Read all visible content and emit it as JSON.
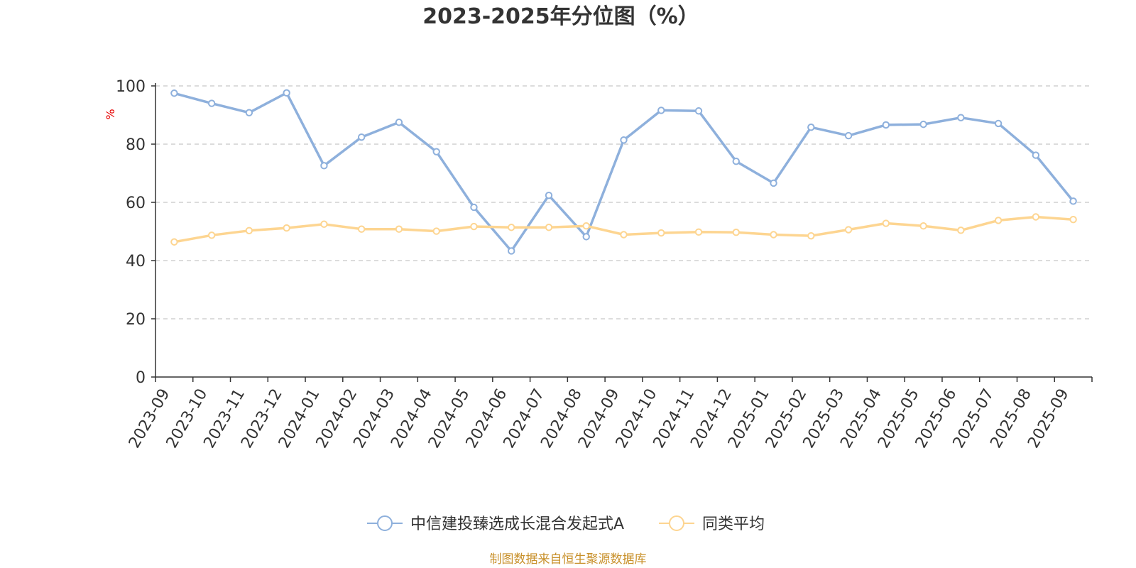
{
  "chart_data": {
    "type": "line",
    "title": "2023-2025年分位图（%）",
    "ylabel": "%",
    "xlabel": "",
    "ylim": [
      0,
      100
    ],
    "yticks": [
      0,
      20,
      40,
      60,
      80,
      100
    ],
    "grid": "horizontal dashed",
    "legend_position": "bottom",
    "categories": [
      "2023-09",
      "2023-10",
      "2023-11",
      "2023-12",
      "2024-01",
      "2024-02",
      "2024-03",
      "2024-04",
      "2024-05",
      "2024-06",
      "2024-07",
      "2024-08",
      "2024-09",
      "2024-10",
      "2024-11",
      "2024-12",
      "2025-01",
      "2025-02",
      "2025-03",
      "2025-04",
      "2025-05",
      "2025-06",
      "2025-07",
      "2025-08",
      "2025-09"
    ],
    "series": [
      {
        "name": "中信建投臻选成长混合发起式A",
        "color": "#8eb0dc",
        "values": [
          97.5,
          94.0,
          90.8,
          97.6,
          72.6,
          82.4,
          87.5,
          77.4,
          58.3,
          43.3,
          62.4,
          48.2,
          81.4,
          91.6,
          91.4,
          74.1,
          66.6,
          85.8,
          82.9,
          86.6,
          86.8,
          89.1,
          87.1,
          76.2,
          60.4
        ]
      },
      {
        "name": "同类平均",
        "color": "#fdd591",
        "values": [
          46.4,
          48.7,
          50.3,
          51.2,
          52.5,
          50.8,
          50.8,
          50.1,
          51.7,
          51.4,
          51.4,
          51.9,
          48.9,
          49.5,
          49.8,
          49.7,
          48.9,
          48.5,
          50.6,
          52.8,
          51.9,
          50.4,
          53.8,
          55.0,
          54.1
        ]
      }
    ],
    "source_note": "制图数据来自恒生聚源数据库"
  }
}
